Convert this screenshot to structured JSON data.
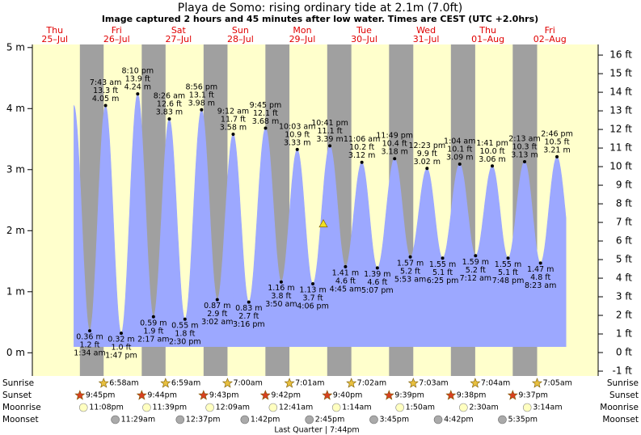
{
  "chart_data": {
    "type": "tide",
    "title": "Playa de Somo: rising  ordinary tide at 2.1m (7.0ft)",
    "subtitle": "Image captured 2 hours and 45 minutes after low water. Times are CEST (UTC +2.0hrs)",
    "days": [
      {
        "weekday": "Thu",
        "date": "25–Jul"
      },
      {
        "weekday": "Fri",
        "date": "26–Jul"
      },
      {
        "weekday": "Sat",
        "date": "27–Jul"
      },
      {
        "weekday": "Sun",
        "date": "28–Jul"
      },
      {
        "weekday": "Mon",
        "date": "29–Jul"
      },
      {
        "weekday": "Tue",
        "date": "30–Jul"
      },
      {
        "weekday": "Wed",
        "date": "31–Jul"
      },
      {
        "weekday": "Thu",
        "date": "01–Aug"
      },
      {
        "weekday": "Fri",
        "date": "02–Aug"
      }
    ],
    "times": [
      "1:34 am",
      "7:43 am",
      "1:47 pm",
      "8:10 pm",
      "2:17 am",
      "8:26 am",
      "2:30 pm",
      "8:56 pm",
      "3:02 am",
      "9:12 am",
      "3:16 pm",
      "9:45 pm",
      "3:50 am",
      "10:03 am",
      "4:06 pm",
      "10:41 pm",
      "4:45 am",
      "11:06 am",
      "5:07 pm",
      "11:49 pm",
      "5:53 am",
      "12:23 pm",
      "6:25 pm",
      "1:04 am",
      "7:12 am",
      "1:41 pm",
      "7:48 pm",
      "2:13 am",
      "8:23 am",
      "2:46 pm"
    ],
    "values": [
      0.36,
      4.05,
      0.32,
      4.24,
      0.59,
      3.83,
      0.55,
      3.98,
      0.87,
      3.58,
      0.83,
      3.68,
      1.16,
      3.33,
      1.13,
      3.39,
      1.41,
      3.12,
      1.39,
      3.18,
      1.57,
      3.02,
      1.55,
      3.09,
      1.59,
      3.06,
      1.55,
      3.13,
      1.47,
      3.21
    ],
    "value_labels": [
      "0.36 m",
      "4.05 m",
      "0.32 m",
      "4.24 m",
      "0.59 m",
      "3.83 m",
      "0.55 m",
      "3.98 m",
      "0.87 m",
      "3.58 m",
      "0.83 m",
      "3.68 m",
      "1.16 m",
      "3.33 m",
      "1.13 m",
      "3.39 m",
      "1.41 m",
      "3.12 m",
      "1.39 m",
      "3.18 m",
      "1.57 m",
      "3.02 m",
      "1.55 m",
      "3.09 m",
      "1.59 m",
      "3.06 m",
      "1.55 m",
      "3.13 m",
      "1.47 m",
      "3.21 m"
    ],
    "feet_labels": [
      "1.2 ft",
      "13.3 ft",
      "1.0 ft",
      "13.9 ft",
      "1.9 ft",
      "12.6 ft",
      "1.8 ft",
      "13.1 ft",
      "2.9 ft",
      "11.7 ft",
      "2.7 ft",
      "12.1 ft",
      "3.8 ft",
      "10.9 ft",
      "3.7 ft",
      "11.1 ft",
      "4.6 ft",
      "10.2 ft",
      "4.6 ft",
      "10.4 ft",
      "5.2 ft",
      "9.9 ft",
      "5.1 ft",
      "10.1 ft",
      "5.2 ft",
      "10.0 ft",
      "5.1 ft",
      "10.3 ft",
      "4.8 ft",
      "10.5 ft"
    ],
    "color": "#9ca8ff",
    "marker_level": 2.1,
    "ylim": [
      -0.38,
      5.05
    ],
    "yticks": [
      {
        "value": 0,
        "label": "0 m"
      },
      {
        "value": 1,
        "label": "1 m"
      },
      {
        "value": 2,
        "label": "2 m"
      },
      {
        "value": 3,
        "label": "3 m"
      },
      {
        "value": 4,
        "label": "4 m"
      },
      {
        "value": 5,
        "label": "5 m"
      }
    ],
    "y2lim": [
      -1.26,
      16.57
    ],
    "y2ticks": [
      {
        "value": -1,
        "label": "-1 ft"
      },
      {
        "value": 0,
        "label": "0 ft"
      },
      {
        "value": 1,
        "label": "1 ft"
      },
      {
        "value": 2,
        "label": "2 ft"
      },
      {
        "value": 3,
        "label": "3 ft"
      },
      {
        "value": 4,
        "label": "4 ft"
      },
      {
        "value": 5,
        "label": "5 ft"
      },
      {
        "value": 6,
        "label": "6 ft"
      },
      {
        "value": 7,
        "label": "7 ft"
      },
      {
        "value": 8,
        "label": "8 ft"
      },
      {
        "value": 9,
        "label": "9 ft"
      },
      {
        "value": 10,
        "label": "10 ft"
      },
      {
        "value": 11,
        "label": "11 ft"
      },
      {
        "value": 12,
        "label": "12 ft"
      },
      {
        "value": 13,
        "label": "13 ft"
      },
      {
        "value": 14,
        "label": "14 ft"
      },
      {
        "value": 15,
        "label": "15 ft"
      },
      {
        "value": 16,
        "label": "16 ft"
      }
    ],
    "sunrise_label": "Sunrise",
    "sunset_label": "Sunset",
    "moonrise_label": "Moonrise",
    "moonset_label": "Moonset",
    "sunrise": [
      "6:58am",
      "6:59am",
      "7:00am",
      "7:01am",
      "7:02am",
      "7:03am",
      "7:04am",
      "7:05am"
    ],
    "sunset": [
      "9:45pm",
      "9:44pm",
      "9:43pm",
      "9:42pm",
      "9:40pm",
      "9:39pm",
      "9:38pm",
      "9:37pm"
    ],
    "moonrise": [
      "11:08pm",
      "11:39pm",
      "12:09am",
      "12:41am",
      "1:14am",
      "1:50am",
      "2:30am",
      "3:14am"
    ],
    "moonset": [
      "11:29am",
      "12:37pm",
      "1:42pm",
      "2:45pm",
      "3:45pm",
      "4:42pm",
      "5:35pm"
    ],
    "moon_phase": "Last Quarter | 7:44pm"
  }
}
